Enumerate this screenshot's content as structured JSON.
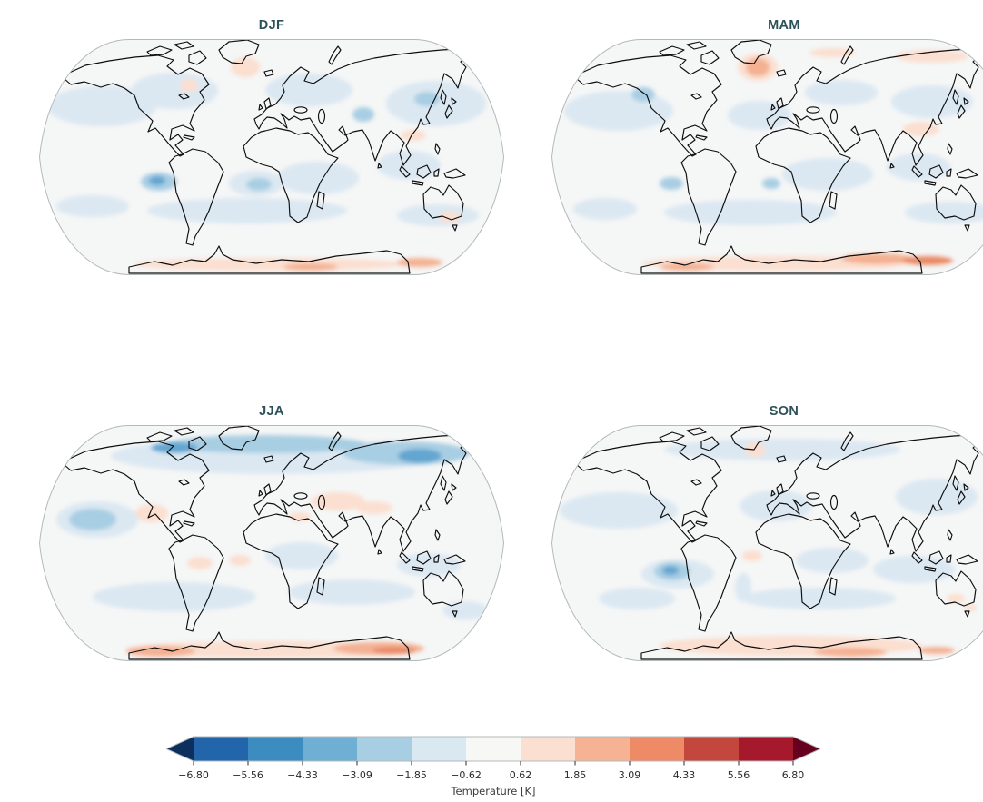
{
  "chart_data": {
    "type": "heatmap",
    "subtype": "filled-contour world maps, Robinson projection",
    "panels": [
      {
        "id": "djf",
        "title": "DJF"
      },
      {
        "id": "mam",
        "title": "MAM"
      },
      {
        "id": "jja",
        "title": "JJA"
      },
      {
        "id": "son",
        "title": "SON"
      }
    ],
    "colorbar": {
      "label": "Temperature [K]",
      "tick_labels": [
        "−6.80",
        "−5.56",
        "−4.33",
        "−3.09",
        "−1.85",
        "−0.62",
        "0.62",
        "1.85",
        "3.09",
        "4.33",
        "5.56",
        "6.80"
      ],
      "tick_values": [
        -6.8,
        -5.56,
        -4.33,
        -3.09,
        -1.85,
        -0.62,
        0.62,
        1.85,
        3.09,
        4.33,
        5.56,
        6.8
      ],
      "segment_colors": [
        "#2265ab",
        "#3d8cc0",
        "#70afd4",
        "#a7cee3",
        "#dae8f1",
        "#f7f7f6",
        "#fbdfd0",
        "#f5b394",
        "#ee8a66",
        "#c4473e",
        "#a6182b"
      ],
      "under_arrow_color": "#0d2f5e",
      "over_arrow_color": "#67001f",
      "orientation": "horizontal",
      "extend": "both"
    },
    "anomaly_palette": {
      "b1": "#dbe8f2",
      "b2": "#a8cee3",
      "b3": "#64a6d1",
      "r1": "#fbdfd0",
      "r2": "#f4b193",
      "r3": "#e98a66"
    },
    "anomalies": {
      "djf": [
        [
          70,
          75,
          60,
          22,
          "b1"
        ],
        [
          150,
          58,
          48,
          20,
          "b1"
        ],
        [
          298,
          57,
          48,
          18,
          "b1"
        ],
        [
          438,
          72,
          55,
          25,
          "b1"
        ],
        [
          428,
          67,
          14,
          8,
          "b2"
        ],
        [
          358,
          84,
          12,
          8,
          "b2"
        ],
        [
          308,
          154,
          45,
          18,
          "b1"
        ],
        [
          408,
          140,
          35,
          16,
          "b1"
        ],
        [
          240,
          160,
          30,
          14,
          "b1"
        ],
        [
          243,
          161,
          14,
          7,
          "b2"
        ],
        [
          133,
          158,
          20,
          10,
          "b2"
        ],
        [
          131,
          157,
          9,
          5,
          "b3"
        ],
        [
          230,
          190,
          110,
          14,
          "b1"
        ],
        [
          60,
          185,
          40,
          12,
          "b1"
        ],
        [
          440,
          195,
          45,
          12,
          "b1"
        ],
        [
          166,
          52,
          10,
          7,
          "r1"
        ],
        [
          228,
          32,
          16,
          11,
          "r1"
        ],
        [
          413,
          107,
          14,
          6,
          "r1"
        ],
        [
          453,
          197,
          12,
          6,
          "r1"
        ],
        [
          255,
          249,
          150,
          7,
          "r1"
        ],
        [
          300,
          252,
          30,
          4,
          "r2"
        ],
        [
          420,
          247,
          25,
          5,
          "r2"
        ]
      ],
      "mam": [
        [
          75,
          80,
          60,
          22,
          "b1"
        ],
        [
          102,
          62,
          13,
          8,
          "b2"
        ],
        [
          230,
          85,
          35,
          16,
          "b1"
        ],
        [
          320,
          60,
          40,
          14,
          "b1"
        ],
        [
          420,
          70,
          45,
          18,
          "b1"
        ],
        [
          305,
          150,
          50,
          18,
          "b1"
        ],
        [
          405,
          142,
          35,
          15,
          "b1"
        ],
        [
          133,
          160,
          13,
          7,
          "b2"
        ],
        [
          243,
          160,
          10,
          6,
          "b2"
        ],
        [
          220,
          192,
          95,
          14,
          "b1"
        ],
        [
          440,
          192,
          50,
          12,
          "b1"
        ],
        [
          60,
          188,
          35,
          12,
          "b1"
        ],
        [
          228,
          32,
          22,
          15,
          "r1"
        ],
        [
          228,
          32,
          13,
          10,
          "r2"
        ],
        [
          420,
          20,
          40,
          7,
          "r1"
        ],
        [
          310,
          16,
          25,
          5,
          "r1"
        ],
        [
          408,
          100,
          20,
          8,
          "r1"
        ],
        [
          250,
          248,
          150,
          8,
          "r1"
        ],
        [
          360,
          243,
          40,
          6,
          "r2"
        ],
        [
          415,
          245,
          28,
          5,
          "r3"
        ],
        [
          150,
          252,
          30,
          4,
          "r2"
        ]
      ],
      "jja": [
        [
          260,
          35,
          180,
          20,
          "b1"
        ],
        [
          250,
          22,
          110,
          10,
          "b2"
        ],
        [
          405,
          32,
          70,
          13,
          "b2"
        ],
        [
          150,
          26,
          26,
          6,
          "b3"
        ],
        [
          420,
          35,
          24,
          8,
          "b3"
        ],
        [
          65,
          105,
          45,
          20,
          "b1"
        ],
        [
          60,
          105,
          26,
          12,
          "b2"
        ],
        [
          125,
          98,
          18,
          10,
          "r1"
        ],
        [
          330,
          85,
          30,
          10,
          "r1"
        ],
        [
          370,
          92,
          20,
          7,
          "r1"
        ],
        [
          288,
          102,
          12,
          5,
          "r1"
        ],
        [
          178,
          153,
          14,
          7,
          "r1"
        ],
        [
          222,
          150,
          12,
          6,
          "r1"
        ],
        [
          290,
          145,
          40,
          15,
          "b1"
        ],
        [
          430,
          155,
          35,
          13,
          "b1"
        ],
        [
          150,
          190,
          90,
          16,
          "b1"
        ],
        [
          345,
          185,
          70,
          14,
          "b1"
        ],
        [
          470,
          205,
          25,
          10,
          "b1"
        ],
        [
          255,
          248,
          160,
          9,
          "r1"
        ],
        [
          135,
          250,
          38,
          6,
          "r2"
        ],
        [
          375,
          247,
          50,
          7,
          "r2"
        ],
        [
          392,
          249,
          24,
          4,
          "r3"
        ]
      ],
      "son": [
        [
          255,
          28,
          130,
          12,
          "b1"
        ],
        [
          75,
          95,
          65,
          20,
          "b1"
        ],
        [
          248,
          90,
          40,
          17,
          "b1"
        ],
        [
          425,
          80,
          45,
          20,
          "b1"
        ],
        [
          225,
          28,
          11,
          8,
          "r1"
        ],
        [
          140,
          165,
          40,
          16,
          "b1"
        ],
        [
          134,
          162,
          20,
          10,
          "b2"
        ],
        [
          132,
          161,
          9,
          5,
          "b3"
        ],
        [
          212,
          180,
          9,
          16,
          "b1"
        ],
        [
          222,
          145,
          11,
          6,
          "r1"
        ],
        [
          310,
          150,
          40,
          14,
          "b1"
        ],
        [
          295,
          192,
          85,
          12,
          "b1"
        ],
        [
          95,
          192,
          42,
          12,
          "b1"
        ],
        [
          400,
          160,
          45,
          15,
          "b1"
        ],
        [
          446,
          192,
          10,
          5,
          "r1"
        ],
        [
          462,
          202,
          7,
          4,
          "r1"
        ],
        [
          265,
          244,
          145,
          11,
          "r1"
        ],
        [
          330,
          251,
          40,
          5,
          "r2"
        ],
        [
          425,
          249,
          20,
          4,
          "r2"
        ]
      ]
    }
  },
  "style": {
    "title_color": "#2d5158",
    "coastline_color": "#0d0d0d",
    "ocean_color": "#f5f6f6",
    "map_border_color": "#b3b8bb",
    "tick_color": "#2b2b2b",
    "axis_label_color": "#3d3d3d",
    "background": "#ffffff"
  }
}
